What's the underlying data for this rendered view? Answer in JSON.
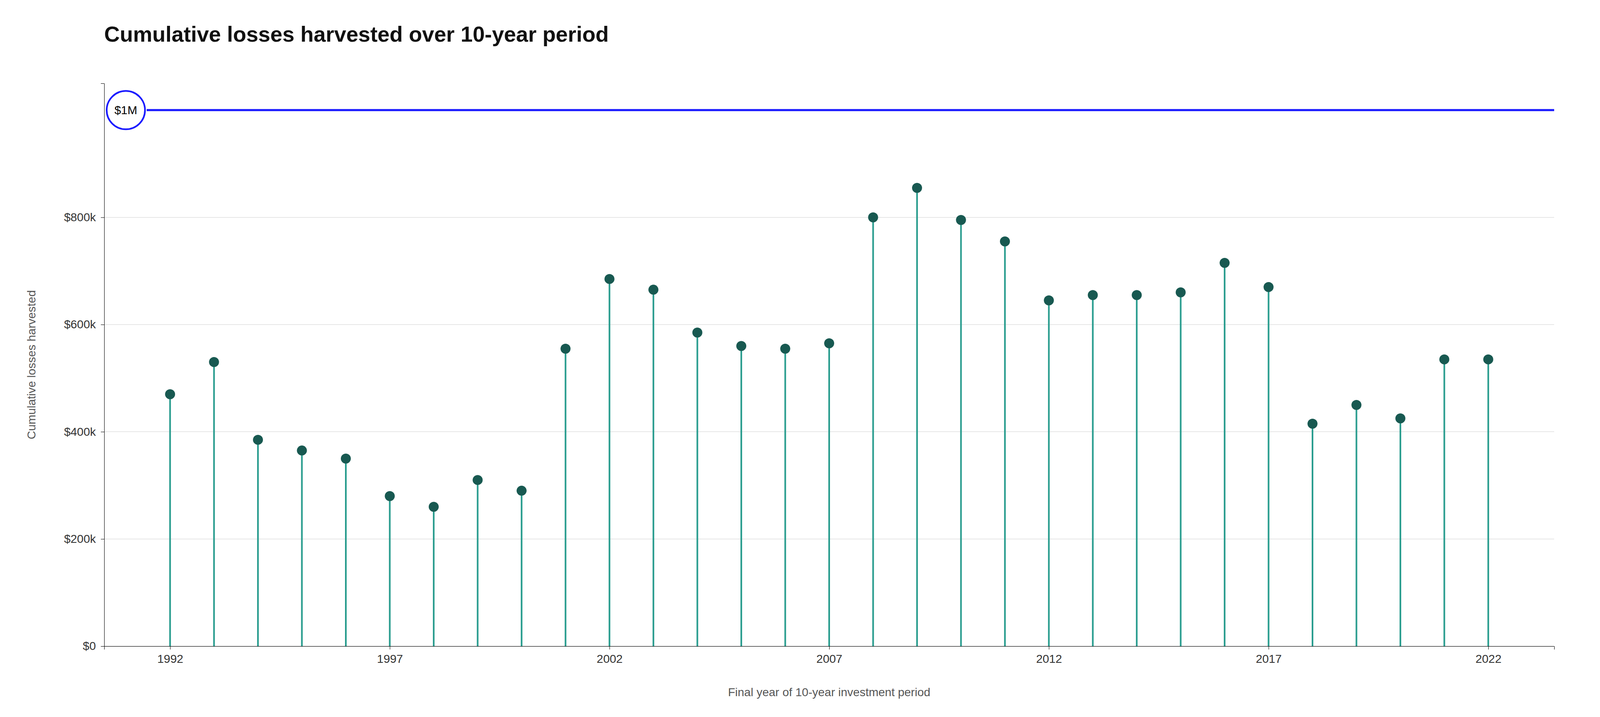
{
  "chart_data": {
    "type": "lollipop",
    "title": "Cumulative losses harvested over 10-year period",
    "xlabel": "Final year of 10-year investment period",
    "ylabel": "Cumulative losses harvested",
    "x": [
      1992,
      1993,
      1994,
      1995,
      1996,
      1997,
      1998,
      1999,
      2000,
      2001,
      2002,
      2003,
      2004,
      2005,
      2006,
      2007,
      2008,
      2009,
      2010,
      2011,
      2012,
      2013,
      2014,
      2015,
      2016,
      2017,
      2018,
      2019,
      2020,
      2021,
      2022
    ],
    "values": [
      470000,
      530000,
      385000,
      365000,
      350000,
      280000,
      260000,
      310000,
      290000,
      555000,
      685000,
      665000,
      585000,
      560000,
      555000,
      565000,
      800000,
      855000,
      795000,
      755000,
      645000,
      655000,
      655000,
      660000,
      715000,
      670000,
      415000,
      450000,
      425000,
      535000,
      535000
    ],
    "color": "#2a9d8f",
    "xlim": [
      1990.5,
      2023.5
    ],
    "xticks": [
      1992,
      1997,
      2002,
      2007,
      2012,
      2017,
      2022
    ],
    "ylim": [
      0,
      1050000
    ],
    "yticks": [
      {
        "value": 0,
        "label": "$0"
      },
      {
        "value": 200000,
        "label": "$200k"
      },
      {
        "value": 400000,
        "label": "$400k"
      },
      {
        "value": 600000,
        "label": "$600k"
      },
      {
        "value": 800000,
        "label": "$800k"
      }
    ],
    "grid": true,
    "annotations": [
      {
        "y": 1000000,
        "label": "$1M",
        "color": "#1a1aff"
      }
    ]
  }
}
